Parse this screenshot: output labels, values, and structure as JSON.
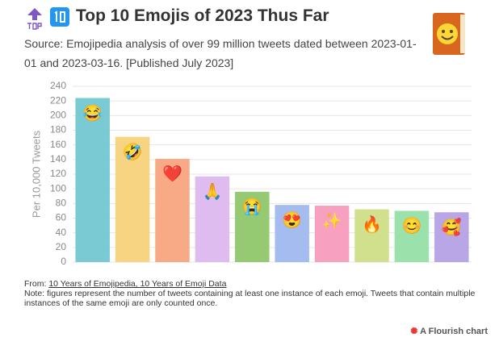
{
  "chart_data": {
    "type": "bar",
    "title": "Top 10 Emojis of 2023 Thus Far",
    "subtitle": "Source: Emojipedia analysis of over 99 million tweets dated between 2023-01-01 and 2023-03-16. [Published July 2023]",
    "y_label": "Per 10,000 Tweets",
    "categories": [
      "😂",
      "🤣",
      "❤️",
      "🙏",
      "😭",
      "😍",
      "✨",
      "🔥",
      "😊",
      "🥰"
    ],
    "values": [
      224,
      171,
      141,
      117,
      96,
      78,
      77,
      72,
      70,
      68
    ],
    "colors": [
      "#79cad3",
      "#f6d482",
      "#f8aa86",
      "#dfbcf0",
      "#95ca72",
      "#a5bcf0",
      "#f7a0c0",
      "#d0e08c",
      "#9be1ac",
      "#b8a6e7"
    ],
    "ylim": [
      0,
      240
    ],
    "yticks": [
      0,
      20,
      40,
      60,
      80,
      100,
      120,
      140,
      160,
      180,
      200,
      220,
      240
    ],
    "grid": true,
    "source_label": "From:",
    "source": "10 Years of Emojipedia, 10 Years of Emoji Data",
    "note": "Note: figures represent the number of tweets containing at least one instance of each emoji. Tweets that contain multiple instances of the same emoji are only counted once.",
    "credit": "A Flourish chart"
  }
}
